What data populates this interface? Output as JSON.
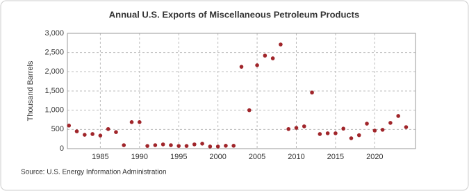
{
  "chart_data": {
    "type": "scatter",
    "title": "Annual U.S. Exports of Miscellaneous Petroleum Products",
    "y_label": "Thousand Barrels",
    "source": "Source: U.S. Energy Information Administration",
    "color": "#a0252a",
    "grid": true,
    "x": [
      1981,
      1982,
      1983,
      1984,
      1985,
      1986,
      1987,
      1988,
      1989,
      1990,
      1991,
      1992,
      1993,
      1994,
      1995,
      1996,
      1997,
      1998,
      1999,
      2000,
      2001,
      2002,
      2003,
      2004,
      2005,
      2006,
      2007,
      2008,
      2009,
      2010,
      2011,
      2012,
      2013,
      2014,
      2015,
      2016,
      2017,
      2018,
      2019,
      2020,
      2021,
      2022,
      2023,
      2024
    ],
    "values": [
      600,
      450,
      360,
      380,
      340,
      510,
      430,
      90,
      690,
      690,
      70,
      90,
      110,
      90,
      70,
      70,
      110,
      130,
      55,
      55,
      75,
      75,
      2130,
      1000,
      2170,
      2420,
      2350,
      2710,
      510,
      540,
      580,
      1460,
      380,
      400,
      400,
      520,
      270,
      350,
      650,
      470,
      490,
      670,
      850,
      560
    ],
    "xlim": [
      1980.8,
      2025.2
    ],
    "xticks": [
      1985,
      1990,
      1995,
      2000,
      2005,
      2010,
      2015,
      2020
    ],
    "ylim": [
      0,
      3000
    ],
    "yticks": [
      0,
      500,
      {
        "value": 1000,
        "label": "1,000"
      },
      {
        "value": 1500,
        "label": "1,500"
      },
      {
        "value": 2000,
        "label": "2,000"
      },
      {
        "value": 2500,
        "label": "2,500"
      },
      {
        "value": 3000,
        "label": "3,000"
      }
    ]
  }
}
